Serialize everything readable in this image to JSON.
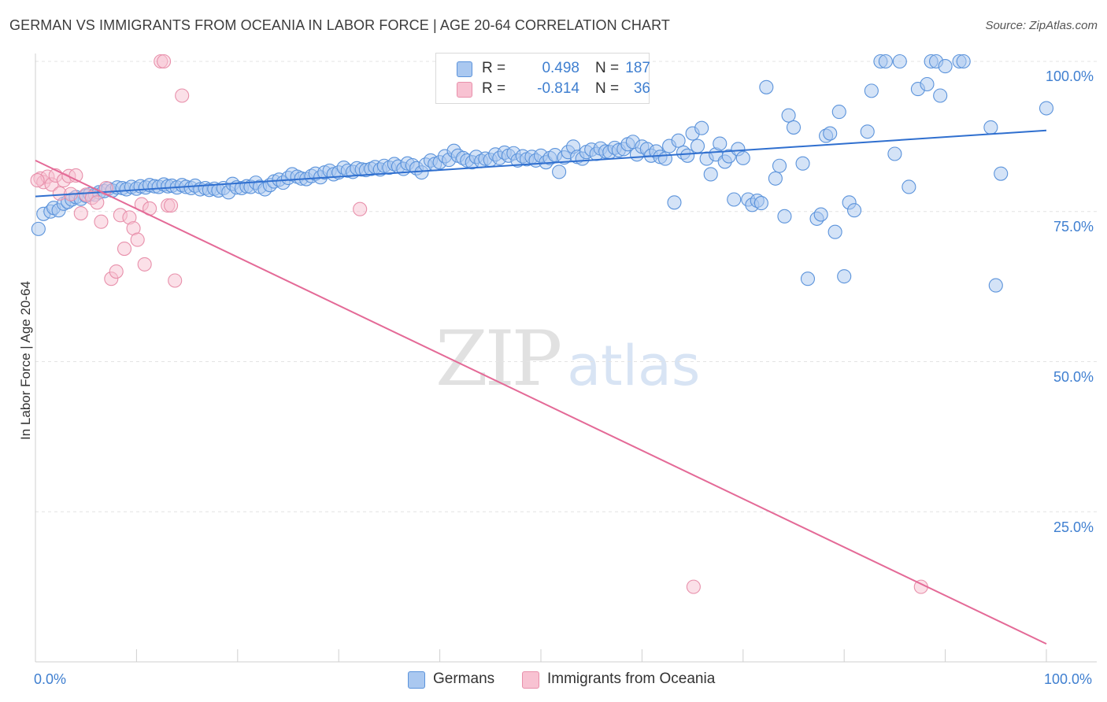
{
  "header": {
    "title": "GERMAN VS IMMIGRANTS FROM OCEANIA IN LABOR FORCE | AGE 20-64 CORRELATION CHART",
    "source": "Source: ZipAtlas.com"
  },
  "watermark": {
    "zip": "ZIP",
    "atlas": "atlas"
  },
  "colors": {
    "blue_fill": "#aac8f0",
    "blue_stroke": "#5b93db",
    "blue_line": "#2f6fcf",
    "pink_fill": "#f8c2d2",
    "pink_stroke": "#e890ab",
    "pink_line": "#e46a97",
    "tick_text": "#3f7fd0",
    "grid": "#e3e3e3"
  },
  "legend": {
    "rows": [
      {
        "r_label": "R =",
        "r_value": "0.498",
        "n_label": "N =",
        "n_value": "187"
      },
      {
        "r_label": "R =",
        "r_value": "-0.814",
        "n_label": "N =",
        "n_value": "36"
      }
    ]
  },
  "bottom_legend": {
    "germans": "Germans",
    "oceania": "Immigrants from Oceania"
  },
  "axes": {
    "y_label": "In Labor Force | Age 20-64",
    "x_min_label": "0.0%",
    "x_max_label": "100.0%",
    "y_ticks": [
      "100.0%",
      "75.0%",
      "50.0%",
      "25.0%"
    ]
  },
  "chart_data": {
    "type": "scatter",
    "title": "GERMAN VS IMMIGRANTS FROM OCEANIA IN LABOR FORCE | AGE 20-64 CORRELATION CHART",
    "xlabel": "",
    "ylabel": "In Labor Force | Age 20-64",
    "xlim": [
      0,
      100
    ],
    "ylim": [
      0,
      100
    ],
    "y_ticks": [
      25,
      50,
      75,
      100
    ],
    "grid": true,
    "legend_position": "top-center",
    "series": [
      {
        "name": "Germans",
        "color": "#5b93db",
        "r": 0.498,
        "n": 187,
        "trend": {
          "x": [
            0,
            100
          ],
          "y": [
            77.5,
            88.5
          ]
        },
        "points": [
          [
            0.3,
            72.1
          ],
          [
            0.8,
            74.6
          ],
          [
            1.5,
            75.0
          ],
          [
            1.8,
            75.6
          ],
          [
            2.3,
            75.2
          ],
          [
            2.8,
            76.3
          ],
          [
            3.2,
            76.6
          ],
          [
            3.6,
            77.0
          ],
          [
            4.0,
            77.4
          ],
          [
            4.5,
            77.1
          ],
          [
            5.0,
            77.6
          ],
          [
            5.4,
            77.9
          ],
          [
            5.9,
            77.8
          ],
          [
            6.3,
            78.2
          ],
          [
            6.8,
            78.4
          ],
          [
            7.2,
            78.8
          ],
          [
            7.6,
            78.5
          ],
          [
            8.1,
            79.0
          ],
          [
            8.6,
            78.9
          ],
          [
            9.0,
            78.7
          ],
          [
            9.5,
            79.1
          ],
          [
            10.0,
            78.8
          ],
          [
            10.4,
            79.2
          ],
          [
            10.9,
            79.0
          ],
          [
            11.3,
            79.4
          ],
          [
            11.8,
            79.2
          ],
          [
            12.2,
            79.1
          ],
          [
            12.7,
            79.5
          ],
          [
            13.1,
            79.2
          ],
          [
            13.5,
            79.3
          ],
          [
            14.0,
            79.0
          ],
          [
            14.5,
            79.4
          ],
          [
            14.9,
            79.1
          ],
          [
            15.4,
            78.9
          ],
          [
            15.8,
            79.3
          ],
          [
            16.3,
            78.7
          ],
          [
            16.8,
            78.9
          ],
          [
            17.2,
            78.6
          ],
          [
            17.7,
            78.8
          ],
          [
            18.1,
            78.5
          ],
          [
            18.6,
            78.9
          ],
          [
            19.1,
            78.2
          ],
          [
            19.5,
            79.6
          ],
          [
            19.9,
            79.0
          ],
          [
            20.4,
            78.9
          ],
          [
            20.9,
            79.2
          ],
          [
            21.3,
            79.1
          ],
          [
            21.8,
            79.8
          ],
          [
            22.2,
            79.1
          ],
          [
            22.7,
            78.7
          ],
          [
            23.2,
            79.4
          ],
          [
            23.6,
            80.0
          ],
          [
            24.1,
            80.3
          ],
          [
            24.5,
            79.8
          ],
          [
            25.0,
            80.6
          ],
          [
            25.4,
            81.2
          ],
          [
            25.9,
            80.8
          ],
          [
            26.3,
            80.5
          ],
          [
            26.8,
            80.4
          ],
          [
            27.3,
            80.9
          ],
          [
            27.7,
            81.3
          ],
          [
            28.2,
            80.7
          ],
          [
            28.6,
            81.5
          ],
          [
            29.1,
            81.8
          ],
          [
            29.5,
            81.2
          ],
          [
            30.0,
            81.5
          ],
          [
            30.5,
            82.3
          ],
          [
            30.9,
            81.8
          ],
          [
            31.4,
            81.6
          ],
          [
            31.8,
            82.2
          ],
          [
            32.3,
            82.0
          ],
          [
            32.7,
            81.9
          ],
          [
            33.2,
            82.1
          ],
          [
            33.6,
            82.4
          ],
          [
            34.1,
            82.0
          ],
          [
            34.5,
            82.6
          ],
          [
            35.0,
            82.3
          ],
          [
            35.5,
            82.9
          ],
          [
            35.9,
            82.5
          ],
          [
            36.4,
            82.1
          ],
          [
            36.8,
            83.0
          ],
          [
            37.3,
            82.7
          ],
          [
            37.7,
            82.2
          ],
          [
            38.2,
            81.5
          ],
          [
            38.6,
            82.8
          ],
          [
            39.1,
            83.5
          ],
          [
            39.5,
            82.9
          ],
          [
            40.0,
            83.2
          ],
          [
            40.5,
            84.2
          ],
          [
            40.9,
            83.6
          ],
          [
            41.4,
            85.1
          ],
          [
            41.8,
            84.3
          ],
          [
            42.3,
            83.9
          ],
          [
            42.7,
            83.5
          ],
          [
            43.2,
            83.2
          ],
          [
            43.6,
            84.1
          ],
          [
            44.1,
            83.4
          ],
          [
            44.5,
            83.8
          ],
          [
            45.0,
            83.6
          ],
          [
            45.5,
            84.5
          ],
          [
            45.9,
            83.9
          ],
          [
            46.4,
            84.8
          ],
          [
            46.8,
            84.3
          ],
          [
            47.3,
            84.7
          ],
          [
            47.7,
            83.5
          ],
          [
            48.2,
            84.2
          ],
          [
            48.6,
            83.7
          ],
          [
            49.1,
            84.1
          ],
          [
            49.5,
            83.5
          ],
          [
            50.0,
            84.3
          ],
          [
            50.5,
            83.2
          ],
          [
            50.9,
            83.9
          ],
          [
            51.4,
            84.4
          ],
          [
            51.8,
            81.6
          ],
          [
            52.3,
            84.0
          ],
          [
            52.7,
            84.9
          ],
          [
            53.2,
            85.8
          ],
          [
            53.6,
            84.1
          ],
          [
            54.1,
            83.8
          ],
          [
            54.5,
            84.9
          ],
          [
            55.0,
            85.3
          ],
          [
            55.5,
            84.6
          ],
          [
            55.9,
            85.5
          ],
          [
            56.4,
            85.0
          ],
          [
            56.8,
            84.9
          ],
          [
            57.3,
            85.6
          ],
          [
            57.7,
            85.2
          ],
          [
            58.2,
            85.4
          ],
          [
            58.6,
            86.2
          ],
          [
            59.1,
            86.6
          ],
          [
            59.5,
            84.5
          ],
          [
            60.0,
            85.8
          ],
          [
            60.5,
            85.4
          ],
          [
            60.9,
            84.3
          ],
          [
            61.4,
            85.0
          ],
          [
            61.8,
            84.1
          ],
          [
            62.3,
            83.8
          ],
          [
            62.7,
            85.9
          ],
          [
            63.2,
            76.5
          ],
          [
            63.6,
            86.8
          ],
          [
            64.1,
            84.8
          ],
          [
            64.5,
            84.3
          ],
          [
            65.0,
            88.0
          ],
          [
            65.5,
            85.9
          ],
          [
            65.9,
            88.9
          ],
          [
            66.4,
            83.8
          ],
          [
            66.8,
            81.2
          ],
          [
            67.3,
            84.5
          ],
          [
            67.7,
            86.3
          ],
          [
            68.2,
            83.3
          ],
          [
            68.6,
            84.2
          ],
          [
            69.1,
            77.0
          ],
          [
            69.5,
            85.4
          ],
          [
            70.0,
            83.9
          ],
          [
            70.5,
            77.0
          ],
          [
            70.9,
            76.1
          ],
          [
            71.4,
            76.8
          ],
          [
            71.8,
            76.4
          ],
          [
            72.3,
            95.7
          ],
          [
            73.2,
            80.5
          ],
          [
            73.6,
            82.6
          ],
          [
            74.1,
            74.2
          ],
          [
            74.5,
            91.0
          ],
          [
            75.0,
            89.0
          ],
          [
            75.9,
            83.0
          ],
          [
            76.4,
            63.8
          ],
          [
            77.3,
            73.8
          ],
          [
            77.7,
            74.5
          ],
          [
            78.2,
            87.6
          ],
          [
            78.6,
            88.0
          ],
          [
            79.1,
            71.6
          ],
          [
            79.5,
            91.6
          ],
          [
            80.0,
            64.2
          ],
          [
            80.5,
            76.5
          ],
          [
            81.0,
            75.2
          ],
          [
            82.3,
            88.3
          ],
          [
            82.7,
            95.1
          ],
          [
            83.6,
            100.0
          ],
          [
            84.1,
            100.0
          ],
          [
            85.0,
            84.6
          ],
          [
            85.5,
            100.0
          ],
          [
            86.4,
            79.1
          ],
          [
            87.3,
            95.4
          ],
          [
            88.2,
            96.2
          ],
          [
            88.6,
            100.0
          ],
          [
            89.1,
            100.0
          ],
          [
            89.5,
            94.3
          ],
          [
            90.0,
            99.2
          ],
          [
            91.4,
            100.0
          ],
          [
            91.8,
            100.0
          ],
          [
            94.5,
            89.0
          ],
          [
            95.0,
            62.7
          ],
          [
            95.5,
            81.3
          ],
          [
            100.0,
            92.2
          ]
        ]
      },
      {
        "name": "Immigrants from Oceania",
        "color": "#e890ab",
        "r": -0.814,
        "n": 36,
        "trend": {
          "x": [
            0,
            100
          ],
          "y": [
            83.5,
            3.0
          ]
        },
        "points": [
          [
            0.5,
            80.5
          ],
          [
            0.8,
            79.9
          ],
          [
            1.2,
            80.8
          ],
          [
            1.6,
            79.5
          ],
          [
            2.0,
            81.0
          ],
          [
            2.4,
            78.0
          ],
          [
            2.8,
            80.2
          ],
          [
            3.3,
            80.9
          ],
          [
            3.5,
            77.9
          ],
          [
            4.0,
            81.0
          ],
          [
            4.5,
            74.7
          ],
          [
            5.0,
            77.8
          ],
          [
            5.6,
            77.3
          ],
          [
            6.1,
            76.5
          ],
          [
            6.5,
            73.3
          ],
          [
            7.0,
            78.9
          ],
          [
            7.5,
            63.8
          ],
          [
            8.0,
            65.0
          ],
          [
            8.4,
            74.4
          ],
          [
            8.8,
            68.8
          ],
          [
            9.3,
            74.0
          ],
          [
            9.7,
            72.2
          ],
          [
            10.1,
            70.3
          ],
          [
            10.5,
            76.2
          ],
          [
            10.8,
            66.2
          ],
          [
            11.3,
            75.5
          ],
          [
            12.4,
            100.0
          ],
          [
            12.7,
            100.0
          ],
          [
            13.1,
            76.0
          ],
          [
            13.4,
            76.0
          ],
          [
            13.8,
            63.5
          ],
          [
            14.5,
            94.3
          ],
          [
            32.1,
            75.4
          ],
          [
            65.1,
            12.5
          ],
          [
            87.6,
            12.5
          ],
          [
            0.2,
            80.2
          ]
        ]
      }
    ]
  }
}
